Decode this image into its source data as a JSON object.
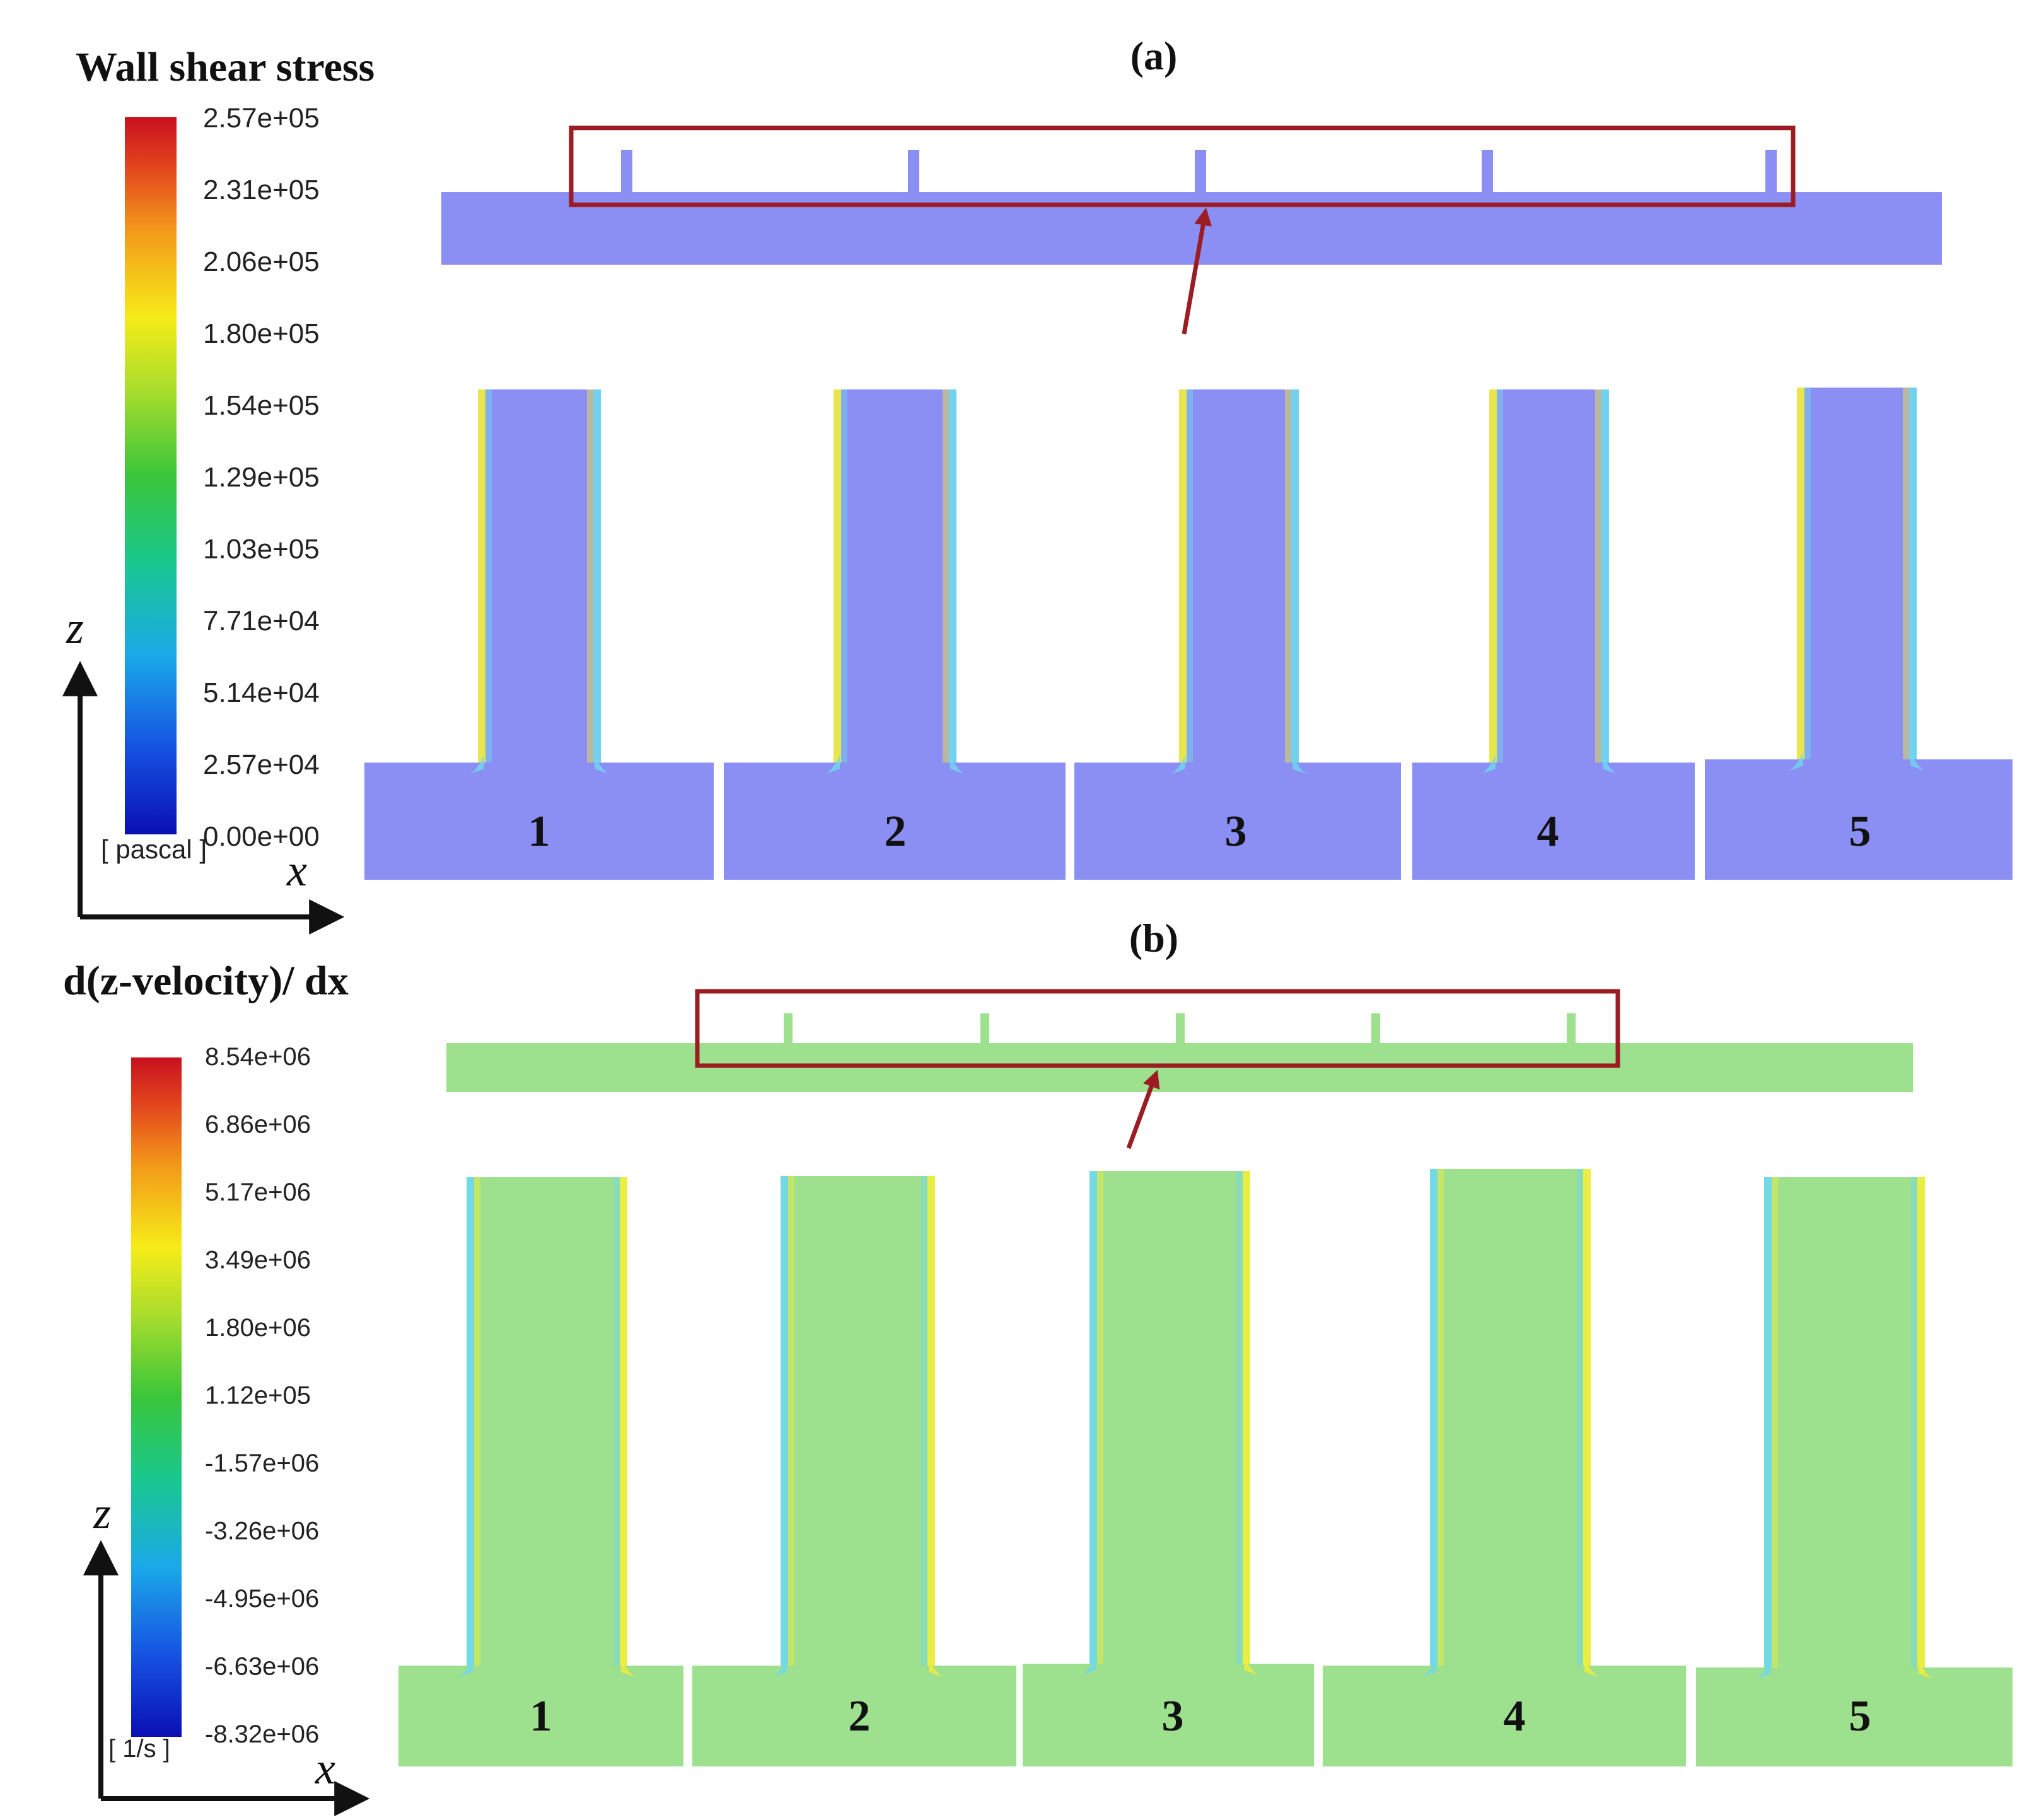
{
  "panel_a": {
    "label": "(a)",
    "legend_title": "Wall shear stress",
    "legend_ticks": [
      "2.57e+05",
      "2.31e+05",
      "2.06e+05",
      "1.80e+05",
      "1.54e+05",
      "1.29e+05",
      "1.03e+05",
      "7.71e+04",
      "5.14e+04",
      "2.57e+04",
      "0.00e+00"
    ],
    "unit": "[ pascal ]",
    "axis_z": "z",
    "axis_x": "x",
    "numbers": [
      "1",
      "2",
      "3",
      "4",
      "5"
    ],
    "field_color": "#8b8ef2"
  },
  "panel_b": {
    "label": "(b)",
    "legend_title": "d(z-velocity)/ dx",
    "legend_ticks": [
      "8.54e+06",
      "6.86e+06",
      "5.17e+06",
      "3.49e+06",
      "1.80e+06",
      "1.12e+05",
      "-1.57e+06",
      "-3.26e+06",
      "-4.95e+06",
      "-6.63e+06",
      "-8.32e+06"
    ],
    "unit": "[ 1/s ]",
    "axis_z": "z",
    "axis_x": "x",
    "numbers": [
      "1",
      "2",
      "3",
      "4",
      "5"
    ],
    "field_color": "#9de08e"
  },
  "colors": {
    "highlight": "#9b1c22",
    "edge_yellow": "#f3ee3a",
    "edge_cyan": "#6fd8ee"
  }
}
